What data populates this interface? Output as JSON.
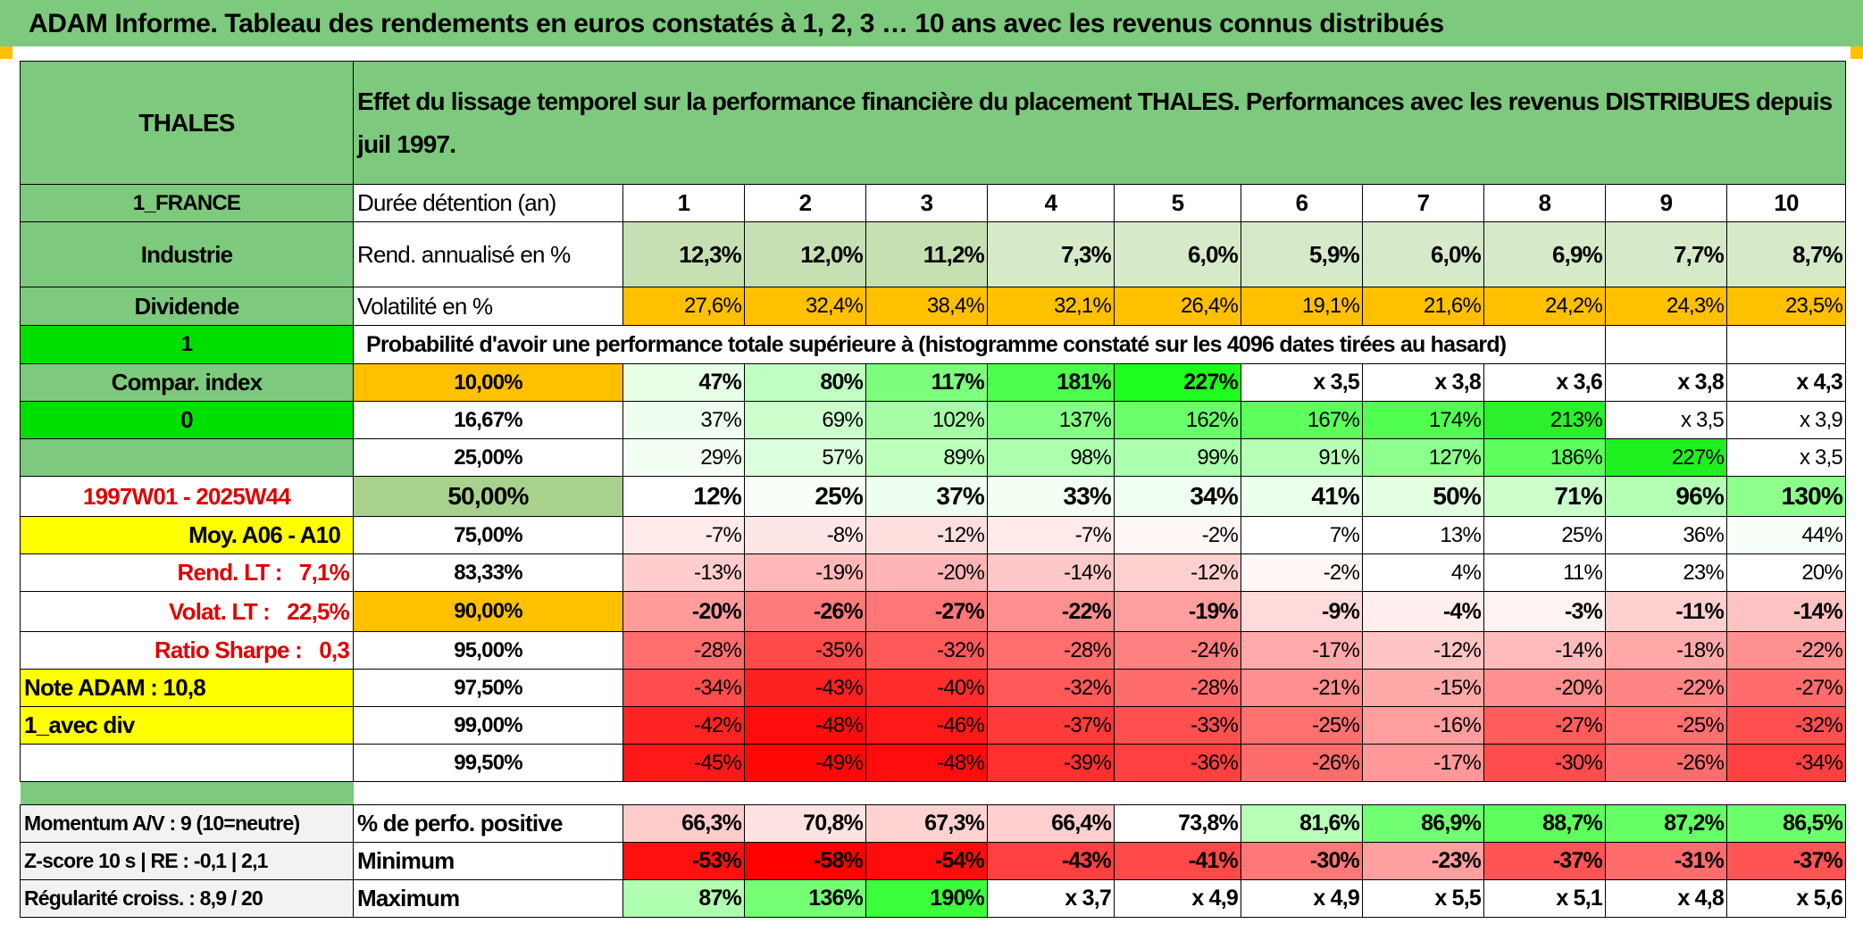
{
  "title": "ADAM Informe. Tableau des rendements en euros constatés à 1, 2, 3 … 10 ans avec les revenus connus distribués",
  "left": {
    "name": "THALES",
    "country": "1_FRANCE",
    "sector": "Industrie",
    "type": "Dividende",
    "flag1": "1",
    "compar": "Compar. index",
    "flag2": "0",
    "period": "1997W01 - 2025W44",
    "moy": "Moy. A06 - A10",
    "rend_lt": "Rend. LT :   7,1%",
    "volat_lt": "Volat. LT :   22,5%",
    "sharpe": "Ratio Sharpe :   0,3",
    "note": "Note ADAM : 10,8",
    "avec_div": "1_avec div",
    "momentum": "Momentum A/V : 9 (10=neutre)",
    "zscore": "Z-score 10 s | RE : -0,1 | 2,1",
    "regularite": "Régularité croiss. : 8,9 / 20"
  },
  "header_text": "Effet du lissage temporel sur la performance financière du placement THALES. Performances avec les revenus DISTRIBUES depuis juil 1997.",
  "duree_label": "Durée détention (an)",
  "years": [
    "1",
    "2",
    "3",
    "4",
    "5",
    "6",
    "7",
    "8",
    "9",
    "10"
  ],
  "rend_label": "Rend. annualisé en %",
  "rend": [
    "12,3%",
    "12,0%",
    "11,2%",
    "7,3%",
    "6,0%",
    "5,9%",
    "6,0%",
    "6,9%",
    "7,7%",
    "8,7%"
  ],
  "vol_label": "Volatilité en %",
  "vol": [
    "27,6%",
    "32,4%",
    "38,4%",
    "32,1%",
    "26,4%",
    "19,1%",
    "21,6%",
    "24,2%",
    "24,3%",
    "23,5%"
  ],
  "prob_text": "Probabilité d'avoir une performance totale supérieure à (histogramme constaté sur les 4096 dates tirées au hasard)",
  "quantiles": [
    {
      "label": "10,00%",
      "vals": [
        "47%",
        "80%",
        "117%",
        "181%",
        "227%",
        "x 3,5",
        "x 3,8",
        "x 3,6",
        "x 3,8",
        "x 4,3"
      ]
    },
    {
      "label": "16,67%",
      "vals": [
        "37%",
        "69%",
        "102%",
        "137%",
        "162%",
        "167%",
        "174%",
        "213%",
        "x 3,5",
        "x 3,9"
      ]
    },
    {
      "label": "25,00%",
      "vals": [
        "29%",
        "57%",
        "89%",
        "98%",
        "99%",
        "91%",
        "127%",
        "186%",
        "227%",
        "x 3,5"
      ]
    },
    {
      "label": "50,00%",
      "vals": [
        "12%",
        "25%",
        "37%",
        "33%",
        "34%",
        "41%",
        "50%",
        "71%",
        "96%",
        "130%"
      ]
    },
    {
      "label": "75,00%",
      "vals": [
        "-7%",
        "-8%",
        "-12%",
        "-7%",
        "-2%",
        "7%",
        "13%",
        "25%",
        "36%",
        "44%"
      ]
    },
    {
      "label": "83,33%",
      "vals": [
        "-13%",
        "-19%",
        "-20%",
        "-14%",
        "-12%",
        "-2%",
        "4%",
        "11%",
        "23%",
        "20%"
      ]
    },
    {
      "label": "90,00%",
      "vals": [
        "-20%",
        "-26%",
        "-27%",
        "-22%",
        "-19%",
        "-9%",
        "-4%",
        "-3%",
        "-11%",
        "-14%"
      ]
    },
    {
      "label": "95,00%",
      "vals": [
        "-28%",
        "-35%",
        "-32%",
        "-28%",
        "-24%",
        "-17%",
        "-12%",
        "-14%",
        "-18%",
        "-22%"
      ]
    },
    {
      "label": "97,50%",
      "vals": [
        "-34%",
        "-43%",
        "-40%",
        "-32%",
        "-28%",
        "-21%",
        "-15%",
        "-20%",
        "-22%",
        "-27%"
      ]
    },
    {
      "label": "99,00%",
      "vals": [
        "-42%",
        "-48%",
        "-46%",
        "-37%",
        "-33%",
        "-25%",
        "-16%",
        "-27%",
        "-25%",
        "-32%"
      ]
    },
    {
      "label": "99,50%",
      "vals": [
        "-45%",
        "-49%",
        "-48%",
        "-39%",
        "-36%",
        "-26%",
        "-17%",
        "-30%",
        "-26%",
        "-34%"
      ]
    }
  ],
  "positive_label": "% de perfo. positive",
  "positive": [
    "66,3%",
    "70,8%",
    "67,3%",
    "66,4%",
    "73,8%",
    "81,6%",
    "86,9%",
    "88,7%",
    "87,2%",
    "86,5%"
  ],
  "min_label": "Minimum",
  "min": [
    "-53%",
    "-58%",
    "-54%",
    "-43%",
    "-41%",
    "-30%",
    "-23%",
    "-37%",
    "-31%",
    "-37%"
  ],
  "max_label": "Maximum",
  "max": [
    "87%",
    "136%",
    "190%",
    "x 3,7",
    "x 4,9",
    "x 4,9",
    "x 5,5",
    "x 5,1",
    "x 4,8",
    "x 5,6"
  ],
  "colors": {
    "rend_bg": [
      "#c6e0b4",
      "#c6e0b4",
      "#c6e0b4",
      "#d6e9c8",
      "#d6e9c8",
      "#d6e9c8",
      "#d6e9c8",
      "#d6e9c8",
      "#d6e9c8",
      "#d6e9c8"
    ],
    "q": [
      [
        "#e6ffe6",
        "#bfffbf",
        "#7dff7d",
        "#4cff4c",
        "#1fff1f",
        "#ffffff",
        "#ffffff",
        "#ffffff",
        "#ffffff",
        "#ffffff"
      ],
      [
        "#efffef",
        "#ccffcc",
        "#a6ffa6",
        "#86ff86",
        "#6cff6c",
        "#5cff5c",
        "#50ff50",
        "#2bf02b",
        "#ffffff",
        "#ffffff"
      ],
      [
        "#f4fff4",
        "#dcffdc",
        "#bbffbb",
        "#adffad",
        "#acffac",
        "#b6ffb6",
        "#8cff8c",
        "#5cff5c",
        "#1ff01f",
        "#ffffff"
      ],
      [
        "#ffffff",
        "#f8fff8",
        "#efffef",
        "#f2fff2",
        "#f1fff1",
        "#ebffeb",
        "#e2ffe2",
        "#ccffcc",
        "#b3ffb3",
        "#8cff8c"
      ],
      [
        "#ffe9e9",
        "#ffe6e6",
        "#ffdede",
        "#ffe9e9",
        "#fff6f6",
        "#ffffff",
        "#ffffff",
        "#ffffff",
        "#ffffff",
        "#f8fff8"
      ],
      [
        "#ffcdcd",
        "#ffb8b8",
        "#ffb5b5",
        "#ffc8c8",
        "#ffd0d0",
        "#fff6f6",
        "#ffffff",
        "#ffffff",
        "#ffffff",
        "#ffffff"
      ],
      [
        "#ff9b9b",
        "#ff7a7a",
        "#ff7676",
        "#ff8f8f",
        "#ff9e9e",
        "#ffdada",
        "#ffeeee",
        "#fff2f2",
        "#ffd0d0",
        "#ffc3c3"
      ],
      [
        "#ff6e6e",
        "#ff4a4a",
        "#ff5858",
        "#ff6e6e",
        "#ff8080",
        "#ffaaaa",
        "#ffc4c4",
        "#ffbbbb",
        "#ffa8a8",
        "#ff9090"
      ],
      [
        "#ff4c4c",
        "#ff2020",
        "#ff2c2c",
        "#ff5858",
        "#ff6c6c",
        "#ff8e8e",
        "#ffa8a8",
        "#ff8e8e",
        "#ff8484",
        "#ff6c6c"
      ],
      [
        "#ff2424",
        "#ff0c0c",
        "#ff1818",
        "#ff3a3a",
        "#ff5050",
        "#ff7070",
        "#ff9e9e",
        "#ff5c5c",
        "#ff7070",
        "#ff5050"
      ],
      [
        "#ff1818",
        "#ff0808",
        "#ff0c0c",
        "#ff3030",
        "#ff4040",
        "#ff6c6c",
        "#ff9898",
        "#ff4c4c",
        "#ff6c6c",
        "#ff4040"
      ]
    ],
    "positive_bg": [
      "#ffcccc",
      "#ffe2e2",
      "#ffd2d2",
      "#ffcece",
      "#ffffff",
      "#b8ffb8",
      "#70ff70",
      "#5cff5c",
      "#64ff64",
      "#6cff6c"
    ],
    "min_bg": [
      "#ff1010",
      "#ff0000",
      "#ff0c0c",
      "#ff4040",
      "#ff4848",
      "#ff7878",
      "#ffa0a0",
      "#ff5454",
      "#ff6c6c",
      "#ff5454"
    ],
    "max_bg": [
      "#b0ffb0",
      "#74ff74",
      "#3cff3c",
      "#ffffff",
      "#ffffff",
      "#ffffff",
      "#ffffff",
      "#ffffff",
      "#ffffff",
      "#ffffff"
    ]
  }
}
